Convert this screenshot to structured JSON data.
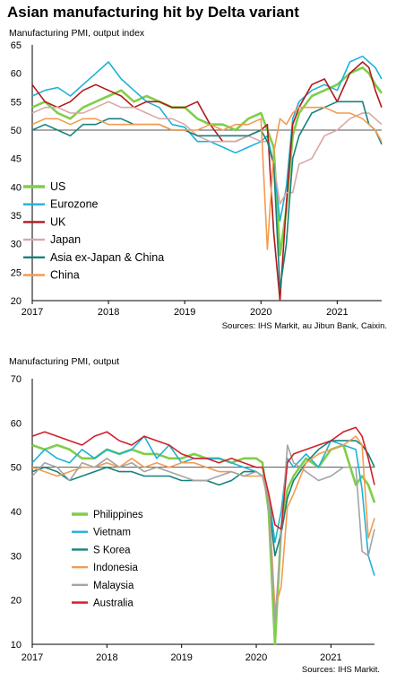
{
  "title": "Asian manufacturing hit by Delta variant",
  "chart_data": [
    {
      "type": "line",
      "ylabel": "Manufacturing  PMI, output  index",
      "source": "Sources: IHS Markit, au Jibun Bank, Caixin.",
      "ylim": [
        20,
        65
      ],
      "yticks": [
        20,
        25,
        30,
        35,
        40,
        45,
        50,
        55,
        60,
        65
      ],
      "xlim": [
        "2017-01",
        "2021-08"
      ],
      "xticks": [
        "2017",
        "2018",
        "2019",
        "2020",
        "2021"
      ],
      "reference_line": 50,
      "legend_position": "bottom-left",
      "x": [
        "2017-01",
        "2017-03",
        "2017-05",
        "2017-07",
        "2017-09",
        "2017-11",
        "2018-01",
        "2018-03",
        "2018-05",
        "2018-07",
        "2018-09",
        "2018-11",
        "2019-01",
        "2019-03",
        "2019-05",
        "2019-07",
        "2019-09",
        "2019-11",
        "2020-01",
        "2020-02",
        "2020-03",
        "2020-04",
        "2020-05",
        "2020-06",
        "2020-07",
        "2020-09",
        "2020-11",
        "2021-01",
        "2021-03",
        "2021-05",
        "2021-06",
        "2021-07",
        "2021-08"
      ],
      "series": [
        {
          "name": "US",
          "color": "#7fce4a",
          "values": [
            54,
            55,
            53,
            52,
            54,
            55,
            56,
            57,
            55,
            56,
            55,
            54,
            54,
            52,
            51,
            51,
            50,
            52,
            53,
            50,
            47,
            28,
            36,
            49,
            53,
            56,
            57,
            58,
            60,
            61,
            60,
            58,
            56.5
          ]
        },
        {
          "name": "Eurozone",
          "color": "#1eb2d6",
          "values": [
            56,
            57,
            57.5,
            56,
            58,
            60,
            62,
            59,
            57,
            55,
            54,
            51,
            50.5,
            48,
            48,
            47,
            46,
            47,
            48,
            49,
            44,
            34,
            40,
            52,
            55,
            57,
            58,
            57,
            62,
            63,
            62,
            61,
            59
          ]
        },
        {
          "name": "UK",
          "color": "#b2191a",
          "values": [
            58,
            55,
            54,
            55,
            57,
            58,
            57,
            56,
            54,
            55,
            55,
            54,
            54,
            55,
            51,
            48,
            48,
            49,
            50,
            51,
            32,
            20,
            37,
            51,
            54,
            58,
            59,
            55,
            60,
            62,
            61,
            57,
            54
          ]
        },
        {
          "name": "Japan",
          "color": "#d9a7a7",
          "values": [
            53,
            54,
            54,
            53,
            53,
            54,
            55,
            54,
            54,
            53,
            52,
            52,
            51,
            49,
            48,
            48,
            48,
            49,
            48,
            48,
            44,
            37,
            39,
            39,
            44,
            45,
            49,
            50,
            52,
            53,
            53,
            52,
            51
          ]
        },
        {
          "name": "Asia ex-Japan & China",
          "color": "#15827c",
          "values": [
            50,
            51,
            50,
            49,
            51,
            51,
            52,
            52,
            51,
            51,
            51,
            50,
            50,
            49,
            49,
            49,
            49,
            49,
            50,
            48,
            44,
            22,
            30,
            45,
            49,
            53,
            54,
            55,
            55,
            55,
            51,
            50,
            47.5
          ]
        },
        {
          "name": "China",
          "color": "#f49b4e",
          "values": [
            51,
            52,
            52,
            51,
            52,
            52,
            51,
            51,
            51,
            51,
            51,
            50,
            50,
            50,
            51,
            50,
            51,
            51,
            52,
            29,
            46,
            52,
            51,
            53,
            54,
            54,
            54,
            53,
            53,
            52,
            51,
            50,
            48
          ]
        }
      ]
    },
    {
      "type": "line",
      "ylabel": "Manufacturing  PMI, output",
      "source": "Sources: IHS Markit.",
      "ylim": [
        10,
        70
      ],
      "yticks": [
        10,
        20,
        30,
        40,
        50,
        60,
        70
      ],
      "xlim": [
        "2017-01",
        "2021-08"
      ],
      "xticks": [
        "2017",
        "2018",
        "2019",
        "2020",
        "2021"
      ],
      "reference_line": 50,
      "legend_position": "bottom-left",
      "x": [
        "2017-01",
        "2017-03",
        "2017-05",
        "2017-07",
        "2017-09",
        "2017-11",
        "2018-01",
        "2018-03",
        "2018-05",
        "2018-07",
        "2018-09",
        "2018-11",
        "2019-01",
        "2019-03",
        "2019-05",
        "2019-07",
        "2019-09",
        "2019-11",
        "2020-01",
        "2020-02",
        "2020-03",
        "2020-04",
        "2020-05",
        "2020-06",
        "2020-07",
        "2020-09",
        "2020-11",
        "2021-01",
        "2021-03",
        "2021-05",
        "2021-06",
        "2021-07",
        "2021-08"
      ],
      "series": [
        {
          "name": "Philippines",
          "color": "#7fce4a",
          "values": [
            55,
            54,
            55,
            54,
            52,
            52,
            54,
            53,
            54,
            53,
            53,
            52,
            52,
            53,
            52,
            52,
            51,
            52,
            52,
            51,
            40,
            10,
            36,
            45,
            48,
            52,
            50,
            54,
            55,
            46,
            48,
            46,
            42
          ]
        },
        {
          "name": "Vietnam",
          "color": "#1eb2d6",
          "values": [
            51,
            54,
            52,
            51,
            54,
            52,
            54,
            53,
            54,
            57,
            52,
            55,
            51,
            52,
            52,
            52,
            51,
            50,
            49,
            48,
            44,
            33,
            40,
            52,
            50,
            53,
            50,
            56,
            55,
            54,
            45,
            30,
            25.5
          ]
        },
        {
          "name": "S Korea",
          "color": "#15827c",
          "values": [
            49,
            50,
            49,
            47,
            48,
            49,
            50,
            49,
            49,
            48,
            48,
            48,
            47,
            47,
            47,
            46,
            47,
            49,
            49,
            48,
            42,
            30,
            35,
            43,
            47,
            51,
            54,
            56,
            56,
            56,
            55,
            53,
            50
          ]
        },
        {
          "name": "Indonesia",
          "color": "#f49b4e",
          "values": [
            50,
            49,
            48,
            49,
            50,
            50,
            51,
            50,
            52,
            50,
            51,
            50,
            51,
            51,
            50,
            49,
            49,
            48,
            48,
            48,
            44,
            18,
            23,
            41,
            44,
            51,
            53,
            54,
            55,
            57,
            55,
            34,
            38.5
          ]
        },
        {
          "name": "Malaysia",
          "color": "#a4a4a4",
          "values": [
            48,
            51,
            50,
            47,
            51,
            50,
            52,
            50,
            51,
            49,
            50,
            49,
            48,
            47,
            47,
            48,
            49,
            48,
            49,
            48,
            42,
            15,
            35,
            55,
            51,
            49,
            47,
            48,
            50,
            50,
            31,
            30,
            36
          ]
        },
        {
          "name": "Australia",
          "color": "#d1202a",
          "values": [
            57,
            58,
            57,
            56,
            55,
            57,
            58,
            56,
            55,
            57,
            56,
            55,
            53,
            52,
            52,
            51,
            52,
            51,
            50,
            50,
            44,
            37,
            36,
            51,
            53,
            54,
            55,
            56,
            58,
            59,
            57,
            52,
            46
          ]
        }
      ]
    }
  ]
}
